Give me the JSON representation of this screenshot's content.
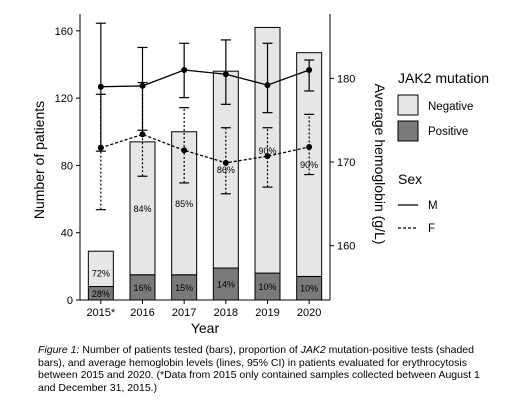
{
  "chart_data": {
    "type": "bar",
    "categories": [
      "2015*",
      "2016",
      "2017",
      "2018",
      "2019",
      "2020"
    ],
    "xlabel": "Year",
    "ylabel_left": "Number of patients",
    "ylabel_right": "Average hemoglobin (g/L)",
    "ylim_left": [
      0,
      170
    ],
    "yticks_left": [
      0,
      40,
      80,
      120,
      160
    ],
    "ylim_right": [
      153.5,
      187.7
    ],
    "yticks_right": [
      160,
      170,
      180
    ],
    "bar_series": [
      {
        "name": "Negative",
        "color": "#e6e6e6",
        "values": [
          21,
          79,
          85,
          117,
          146,
          133
        ]
      },
      {
        "name": "Positive",
        "color": "#7a7a7a",
        "values": [
          8,
          15,
          15,
          19,
          16,
          14
        ]
      }
    ],
    "totals": [
      29,
      94,
      100,
      136,
      162,
      147
    ],
    "bar_labels_negative": [
      "72%",
      "84%",
      "85%",
      "86%",
      "90%",
      "90%"
    ],
    "bar_labels_positive": [
      "28%",
      "16%",
      "15%",
      "14%",
      "10%",
      "10%"
    ],
    "line_series": [
      {
        "name": "M",
        "style": "solid",
        "values": [
          179,
          179.1,
          181,
          180.5,
          179.2,
          181
        ],
        "ci_low": [
          171.3,
          173.8,
          177.7,
          176.9,
          175.9,
          178.5
        ],
        "ci_high": [
          186.6,
          183.7,
          184.2,
          184.6,
          184.2,
          182.2
        ]
      },
      {
        "name": "F",
        "style": "dashed",
        "values": [
          171.7,
          173.3,
          171.4,
          169.9,
          170.7,
          171.8
        ],
        "ci_low": [
          164.3,
          168.3,
          167.5,
          166.2,
          167,
          168.5
        ],
        "ci_high": [
          178.1,
          179.5,
          176.5,
          174.1,
          174.1,
          175.7
        ]
      }
    ],
    "legend": {
      "bars_title": "JAK2 mutation",
      "bars_items": [
        "Negative",
        "Positive"
      ],
      "lines_title": "Sex",
      "lines_items": [
        "M",
        "F"
      ],
      "placement": "right"
    },
    "grid": false
  },
  "caption": {
    "lead": "Figure 1:",
    "part1": " Number of patients tested (bars), proportion of ",
    "gene": "JAK2",
    "part2": " mutation-positive tests (shaded bars), and average hemoglobin levels (lines, 95% CI) in patients evaluated for erythrocytosis between 2015 and 2020. (*Data from 2015 only contained samples collected between August 1 and December 31, 2015.)"
  }
}
